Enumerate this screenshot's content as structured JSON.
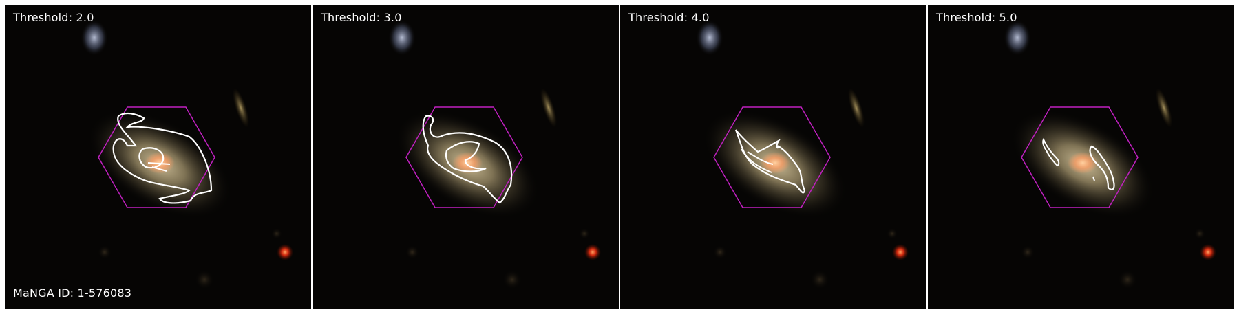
{
  "panels": [
    {
      "threshold_label": "Threshold: 2.0",
      "show_id": true
    },
    {
      "threshold_label": "Threshold: 3.0",
      "show_id": false
    },
    {
      "threshold_label": "Threshold: 4.0",
      "show_id": false
    },
    {
      "threshold_label": "Threshold: 5.0",
      "show_id": false
    }
  ],
  "manga_id_label": "MaNGA ID: 1-576083",
  "colors": {
    "background": "#060504",
    "hexagon": "#c020c0",
    "contour": "#ffffff",
    "galaxy_core": "#ffb070",
    "galaxy_halo": "#a89a70",
    "red_star": "#ff4010",
    "blue_star": "#8c98b8"
  }
}
